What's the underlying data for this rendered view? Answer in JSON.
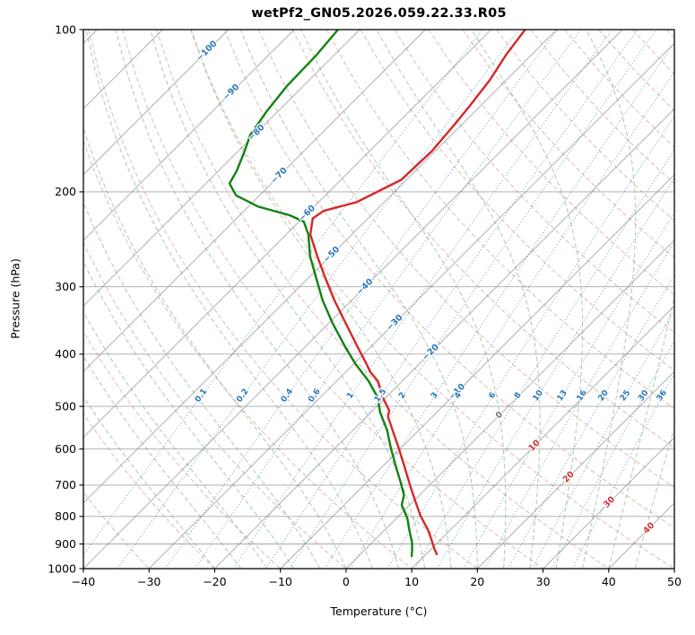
{
  "chart_data": {
    "type": "line",
    "subtype": "skew-t-log-p-sounding",
    "title": "wetPf2_GN05.2026.059.22.33.R05",
    "xlabel": "Temperature (°C)",
    "ylabel": "Pressure (hPa)",
    "xlim": [
      -40,
      50
    ],
    "pressure_range": [
      100,
      1000
    ],
    "temp_ticks": [
      -40,
      -30,
      -20,
      -10,
      0,
      10,
      20,
      30,
      40,
      50
    ],
    "pressure_ticks": [
      100,
      200,
      300,
      400,
      500,
      600,
      700,
      800,
      900,
      1000
    ],
    "grid": true,
    "legend": "none",
    "isotherm_lines": {
      "min": -130,
      "max": 50,
      "step": 10
    },
    "isotherm_labels": [
      -100,
      -90,
      -80,
      -70,
      -60,
      -50,
      -40,
      -30,
      -20,
      -10,
      0,
      10,
      20,
      30,
      40
    ],
    "mixing_ratio_lines_g_kg": [
      0.1,
      0.2,
      0.4,
      0.6,
      1,
      1.5,
      2,
      3,
      4,
      6,
      8,
      10,
      13,
      16,
      20,
      25,
      30,
      36
    ],
    "dry_adiabats_theta_c": {
      "min": -30,
      "max": 200,
      "step": 10
    },
    "moist_adiabats_t0_c": {
      "min": -20,
      "max": 44,
      "step": 4
    },
    "colors": {
      "temperature": "#d62728",
      "dewpoint": "#128212",
      "grid": "#8a8a8a",
      "dry_adiabat": "#cf7d6b",
      "moist_adiabat": "#74a874",
      "mixing_line": "#4e96c8",
      "mixing_label": "#2878b8",
      "isotherm_label_neg": "#2878b8",
      "isotherm_label_zero": "#777777",
      "isotherm_label_pos": "#cc3333",
      "axis": "#000000"
    },
    "series": [
      {
        "name": "temperature",
        "units": [
          "hPa",
          "degC"
        ],
        "points": [
          [
            100,
            -54.8
          ],
          [
            111,
            -53.9
          ],
          [
            124,
            -52.5
          ],
          [
            139,
            -51.6
          ],
          [
            150,
            -51.1
          ],
          [
            168,
            -50.5
          ],
          [
            190,
            -50.8
          ],
          [
            209,
            -54.2
          ],
          [
            217,
            -57.9
          ],
          [
            224,
            -58.4
          ],
          [
            230,
            -57.6
          ],
          [
            240,
            -56.3
          ],
          [
            263,
            -52.0
          ],
          [
            289,
            -47.4
          ],
          [
            318,
            -42.6
          ],
          [
            350,
            -37.5
          ],
          [
            385,
            -32.4
          ],
          [
            416,
            -28.2
          ],
          [
            432,
            -26.2
          ],
          [
            449,
            -23.7
          ],
          [
            481,
            -20.5
          ],
          [
            509,
            -17.5
          ],
          [
            522,
            -16.8
          ],
          [
            550,
            -14.3
          ],
          [
            598,
            -10.3
          ],
          [
            646,
            -6.7
          ],
          [
            698,
            -3.1
          ],
          [
            747,
            0.1
          ],
          [
            798,
            3.3
          ],
          [
            851,
            6.8
          ],
          [
            895,
            9.2
          ],
          [
            920,
            10.5
          ],
          [
            940,
            11.6
          ]
        ]
      },
      {
        "name": "dewpoint",
        "units": [
          "hPa",
          "degC"
        ],
        "points": [
          [
            100,
            -83.3
          ],
          [
            112,
            -82.7
          ],
          [
            127,
            -82.5
          ],
          [
            142,
            -81.7
          ],
          [
            157,
            -80.6
          ],
          [
            169,
            -78.9
          ],
          [
            183,
            -77.2
          ],
          [
            193,
            -76.4
          ],
          [
            203,
            -73.6
          ],
          [
            213,
            -68.5
          ],
          [
            221,
            -62.4
          ],
          [
            227,
            -59.3
          ],
          [
            240,
            -56.6
          ],
          [
            263,
            -53.1
          ],
          [
            289,
            -48.8
          ],
          [
            318,
            -44.4
          ],
          [
            350,
            -39.5
          ],
          [
            385,
            -34.3
          ],
          [
            416,
            -29.9
          ],
          [
            449,
            -25.1
          ],
          [
            481,
            -21.3
          ],
          [
            513,
            -18.6
          ],
          [
            554,
            -14.8
          ],
          [
            598,
            -11.5
          ],
          [
            646,
            -8.0
          ],
          [
            692,
            -4.8
          ],
          [
            730,
            -2.4
          ],
          [
            762,
            -1.2
          ],
          [
            807,
            1.7
          ],
          [
            851,
            3.9
          ],
          [
            895,
            6.1
          ],
          [
            920,
            7.1
          ],
          [
            948,
            8.1
          ]
        ]
      }
    ]
  }
}
